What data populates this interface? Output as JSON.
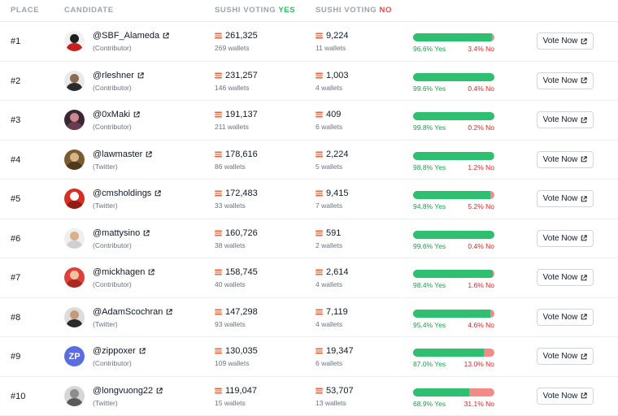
{
  "header": {
    "place": "PLACE",
    "candidate": "CANDIDATE",
    "yes_prefix": "SUSHI VOTING",
    "yes_word": "YES",
    "no_prefix": "SUSHI VOTING",
    "no_word": "NO"
  },
  "colors": {
    "yes_green": "#2fbf71",
    "no_red": "#f28a87",
    "sushi_orange": "#e8643c"
  },
  "rows": [
    {
      "place": "#1",
      "handle": "@SBF_Alameda",
      "role": "(Contributor)",
      "yes_votes": "261,325",
      "yes_wallets": "269 wallets",
      "no_votes": "9,224",
      "no_wallets": "11 wallets",
      "yes_fraction": 0.966,
      "yes_pct": "96.6% Yes",
      "no_pct": "3.4% No",
      "vote_label": "Vote Now",
      "avatar": {
        "bg": "#f1f1f1",
        "head": "#1f1f1f",
        "body": "#c81e1e",
        "text": ""
      }
    },
    {
      "place": "#2",
      "handle": "@rleshner",
      "role": "(Contributor)",
      "yes_votes": "231,257",
      "yes_wallets": "146 wallets",
      "no_votes": "1,003",
      "no_wallets": "4 wallets",
      "yes_fraction": 0.996,
      "yes_pct": "99.6% Yes",
      "no_pct": "0.4% No",
      "vote_label": "Vote Now",
      "avatar": {
        "bg": "#e9e9e9",
        "head": "#8a6a52",
        "body": "#2b2b2b",
        "text": ""
      }
    },
    {
      "place": "#3",
      "handle": "@0xMaki",
      "role": "(Contributor)",
      "yes_votes": "191,137",
      "yes_wallets": "211 wallets",
      "no_votes": "409",
      "no_wallets": "6 wallets",
      "yes_fraction": 0.998,
      "yes_pct": "99.8% Yes",
      "no_pct": "0.2% No",
      "vote_label": "Vote Now",
      "avatar": {
        "bg": "#3a2733",
        "head": "#c98a8f",
        "body": "#6b3c4d",
        "text": ""
      }
    },
    {
      "place": "#4",
      "handle": "@lawmaster",
      "role": "(Twitter)",
      "yes_votes": "178,616",
      "yes_wallets": "86 wallets",
      "no_votes": "2,224",
      "no_wallets": "5 wallets",
      "yes_fraction": 0.988,
      "yes_pct": "98.8% Yes",
      "no_pct": "1.2% No",
      "vote_label": "Vote Now",
      "avatar": {
        "bg": "#7a5a2e",
        "head": "#d8b48a",
        "body": "#4d3a1e",
        "text": ""
      }
    },
    {
      "place": "#5",
      "handle": "@cmsholdings",
      "role": "(Twitter)",
      "yes_votes": "172,483",
      "yes_wallets": "33 wallets",
      "no_votes": "9,415",
      "no_wallets": "7 wallets",
      "yes_fraction": 0.948,
      "yes_pct": "94.8% Yes",
      "no_pct": "5.2% No",
      "vote_label": "Vote Now",
      "avatar": {
        "bg": "#d92d20",
        "head": "#ffffff",
        "body": "#8f1d14",
        "text": ""
      }
    },
    {
      "place": "#6",
      "handle": "@mattysino",
      "role": "(Contributor)",
      "yes_votes": "160,726",
      "yes_wallets": "38 wallets",
      "no_votes": "591",
      "no_wallets": "2 wallets",
      "yes_fraction": 0.996,
      "yes_pct": "99.6% Yes",
      "no_pct": "0.4% No",
      "vote_label": "Vote Now",
      "avatar": {
        "bg": "#efefef",
        "head": "#d9b08c",
        "body": "#d0d0d0",
        "text": ""
      }
    },
    {
      "place": "#7",
      "handle": "@mickhagen",
      "role": "(Contributor)",
      "yes_votes": "158,745",
      "yes_wallets": "40 wallets",
      "no_votes": "2,614",
      "no_wallets": "4 wallets",
      "yes_fraction": 0.984,
      "yes_pct": "98.4% Yes",
      "no_pct": "1.6% No",
      "vote_label": "Vote Now",
      "avatar": {
        "bg": "#e0403a",
        "head": "#f0c2a0",
        "body": "#a82a24",
        "text": ""
      }
    },
    {
      "place": "#8",
      "handle": "@AdamScochran",
      "role": "(Twitter)",
      "yes_votes": "147,298",
      "yes_wallets": "93 wallets",
      "no_votes": "7,119",
      "no_wallets": "4 wallets",
      "yes_fraction": 0.954,
      "yes_pct": "95.4% Yes",
      "no_pct": "4.6% No",
      "vote_label": "Vote Now",
      "avatar": {
        "bg": "#dcdcdc",
        "head": "#c49a7a",
        "body": "#2a2a2a",
        "text": ""
      }
    },
    {
      "place": "#9",
      "handle": "@zippoxer",
      "role": "(Contributor)",
      "yes_votes": "130,035",
      "yes_wallets": "109 wallets",
      "no_votes": "19,347",
      "no_wallets": "6 wallets",
      "yes_fraction": 0.87,
      "yes_pct": "87.0% Yes",
      "no_pct": "13.0% No",
      "vote_label": "Vote Now",
      "avatar": {
        "bg": "#5b6be0",
        "head": "",
        "body": "",
        "text": "ZP"
      }
    },
    {
      "place": "#10",
      "handle": "@longvuong22",
      "role": "(Twitter)",
      "yes_votes": "119,047",
      "yes_wallets": "15 wallets",
      "no_votes": "53,707",
      "no_wallets": "13 wallets",
      "yes_fraction": 0.689,
      "yes_pct": "68.9% Yes",
      "no_pct": "31.1% No",
      "vote_label": "Vote Now",
      "avatar": {
        "bg": "#d6d6d6",
        "head": "#8c8c8c",
        "body": "#5a5a5a",
        "text": ""
      }
    }
  ]
}
